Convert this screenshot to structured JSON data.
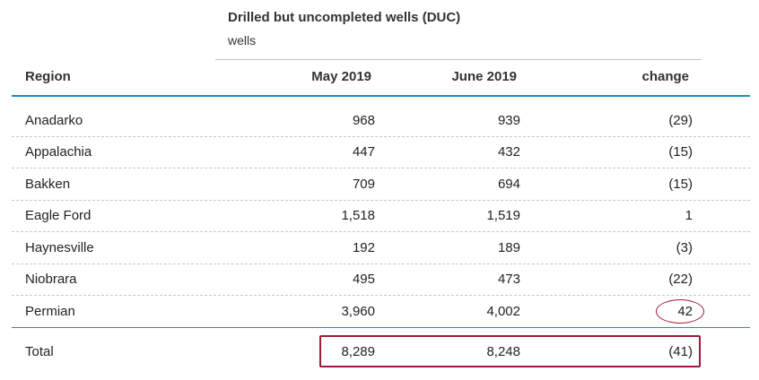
{
  "table": {
    "title": "Drilled but uncompleted wells (DUC)",
    "unit": "wells",
    "headers": {
      "region": "Region",
      "may": "May 2019",
      "june": "June 2019",
      "change": "change"
    },
    "rows": [
      {
        "region": "Anadarko",
        "may": "968",
        "june": "939",
        "change": "(29)"
      },
      {
        "region": "Appalachia",
        "may": "447",
        "june": "432",
        "change": "(15)"
      },
      {
        "region": "Bakken",
        "may": "709",
        "june": "694",
        "change": "(15)"
      },
      {
        "region": "Eagle Ford",
        "may": "1,518",
        "june": "1,519",
        "change": "1"
      },
      {
        "region": "Haynesville",
        "may": "192",
        "june": "189",
        "change": "(3)"
      },
      {
        "region": "Niobrara",
        "may": "495",
        "june": "473",
        "change": "(22)"
      },
      {
        "region": "Permian",
        "may": "3,960",
        "june": "4,002",
        "change": "42"
      }
    ],
    "total": {
      "region": "Total",
      "may": "8,289",
      "june": "8,248",
      "change": "(41)"
    }
  },
  "colors": {
    "accent_rule": "#1f8cc8",
    "highlight": "#9b1b3a"
  }
}
